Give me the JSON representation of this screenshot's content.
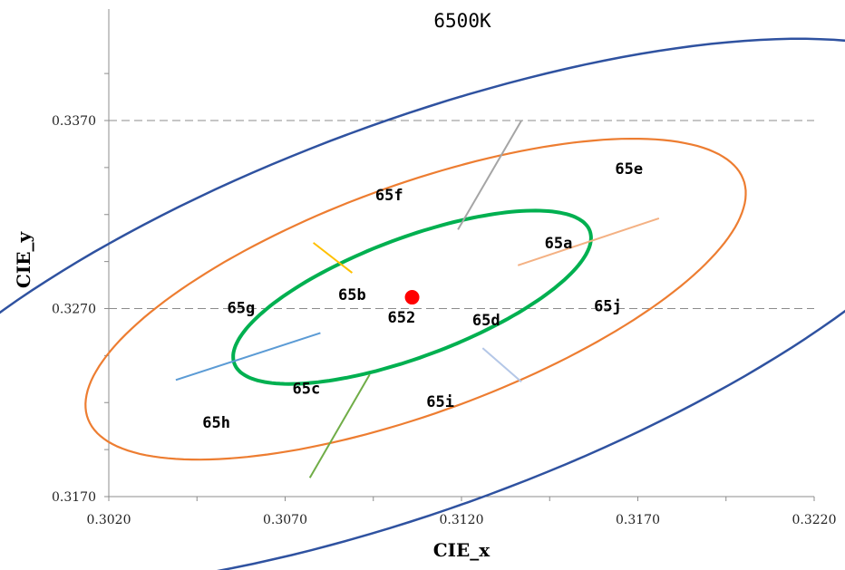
{
  "chart_data": {
    "type": "scatter",
    "title": "6500K",
    "xlabel": "CIE_x",
    "ylabel": "CIE_y",
    "xlim": [
      0.302,
      0.322
    ],
    "ylim": [
      0.317,
      0.3395
    ],
    "x_ticks": [
      "0.3020",
      "0.3070",
      "0.3120",
      "0.3170",
      "0.3220"
    ],
    "y_ticks": [
      "0.3170",
      "0.3270",
      "0.3370"
    ],
    "grid": "horizontal dashed at 0.3270 and 0.3370",
    "center_point": {
      "x": 0.3106,
      "y": 0.3276,
      "color": "#ff0000"
    },
    "ellipses": [
      {
        "name": "inner",
        "color": "#00b050",
        "center": [
          0.3106,
          0.3276
        ],
        "semi_major": 0.0063,
        "semi_minor": 0.0027,
        "angle_deg": 41
      },
      {
        "name": "middle",
        "color": "#ed7d31",
        "center": [
          0.3107,
          0.3275
        ],
        "semi_major": 0.01155,
        "semi_minor": 0.0052,
        "angle_deg": 41
      },
      {
        "name": "outer",
        "color": "#2f52a0",
        "center": [
          0.3108,
          0.3267
        ],
        "semi_major": 0.0199,
        "semi_minor": 0.0088,
        "angle_deg": 41
      }
    ],
    "dividers": [
      {
        "color": "#a5a5a5",
        "from": [
          0.3119,
          0.3312
        ],
        "to": [
          0.3137,
          0.337
        ]
      },
      {
        "color": "#f4b183",
        "from": [
          0.3136,
          0.3293
        ],
        "to": [
          0.3176,
          0.3318
        ]
      },
      {
        "color": "#b4c7e7",
        "from": [
          0.3126,
          0.3249
        ],
        "to": [
          0.3137,
          0.3231
        ]
      },
      {
        "color": "#70ad47",
        "from": [
          0.3094,
          0.3235
        ],
        "to": [
          0.3077,
          0.318
        ]
      },
      {
        "color": "#5b9bd5",
        "from": [
          0.308,
          0.3257
        ],
        "to": [
          0.3039,
          0.3232
        ]
      },
      {
        "color": "#ffc000",
        "from": [
          0.3089,
          0.3289
        ],
        "to": [
          0.3078,
          0.3305
        ]
      }
    ],
    "region_labels": [
      {
        "text": "652",
        "x": 0.3103,
        "y": 0.32655
      },
      {
        "text": "65a",
        "x": 0.31475,
        "y": 0.3305
      },
      {
        "text": "65b",
        "x": 0.3089,
        "y": 0.32775
      },
      {
        "text": "65c",
        "x": 0.3076,
        "y": 0.32275
      },
      {
        "text": "65d",
        "x": 0.3127,
        "y": 0.3264
      },
      {
        "text": "65e",
        "x": 0.31675,
        "y": 0.33445
      },
      {
        "text": "65f",
        "x": 0.30995,
        "y": 0.33305
      },
      {
        "text": "65g",
        "x": 0.30575,
        "y": 0.32705
      },
      {
        "text": "65h",
        "x": 0.30505,
        "y": 0.32095
      },
      {
        "text": "65i",
        "x": 0.3114,
        "y": 0.32205
      },
      {
        "text": "65j",
        "x": 0.31615,
        "y": 0.32715
      }
    ]
  }
}
